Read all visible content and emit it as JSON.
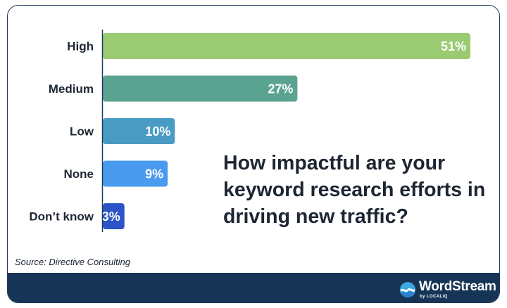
{
  "chart_data": {
    "type": "bar",
    "orientation": "horizontal",
    "title": "How impactful are your keyword research efforts in driving new traffic?",
    "categories": [
      "High",
      "Medium",
      "Low",
      "None",
      "Don’t know"
    ],
    "values": [
      51,
      27,
      10,
      9,
      3
    ],
    "value_labels": [
      "51%",
      "27%",
      "10%",
      "9%",
      "3%"
    ],
    "unit": "%",
    "xlim": [
      0,
      51
    ],
    "grid": false,
    "colors": [
      "#9acb72",
      "#5aa391",
      "#4a9bc4",
      "#4a9bef",
      "#2d54c6"
    ]
  },
  "source": "Source: Directive Consulting",
  "brand": {
    "name": "WordStream",
    "sub": "by LOCALiQ"
  },
  "colors": {
    "footer": "#163556",
    "axis": "#1f3a5a",
    "text": "#1d2632"
  }
}
